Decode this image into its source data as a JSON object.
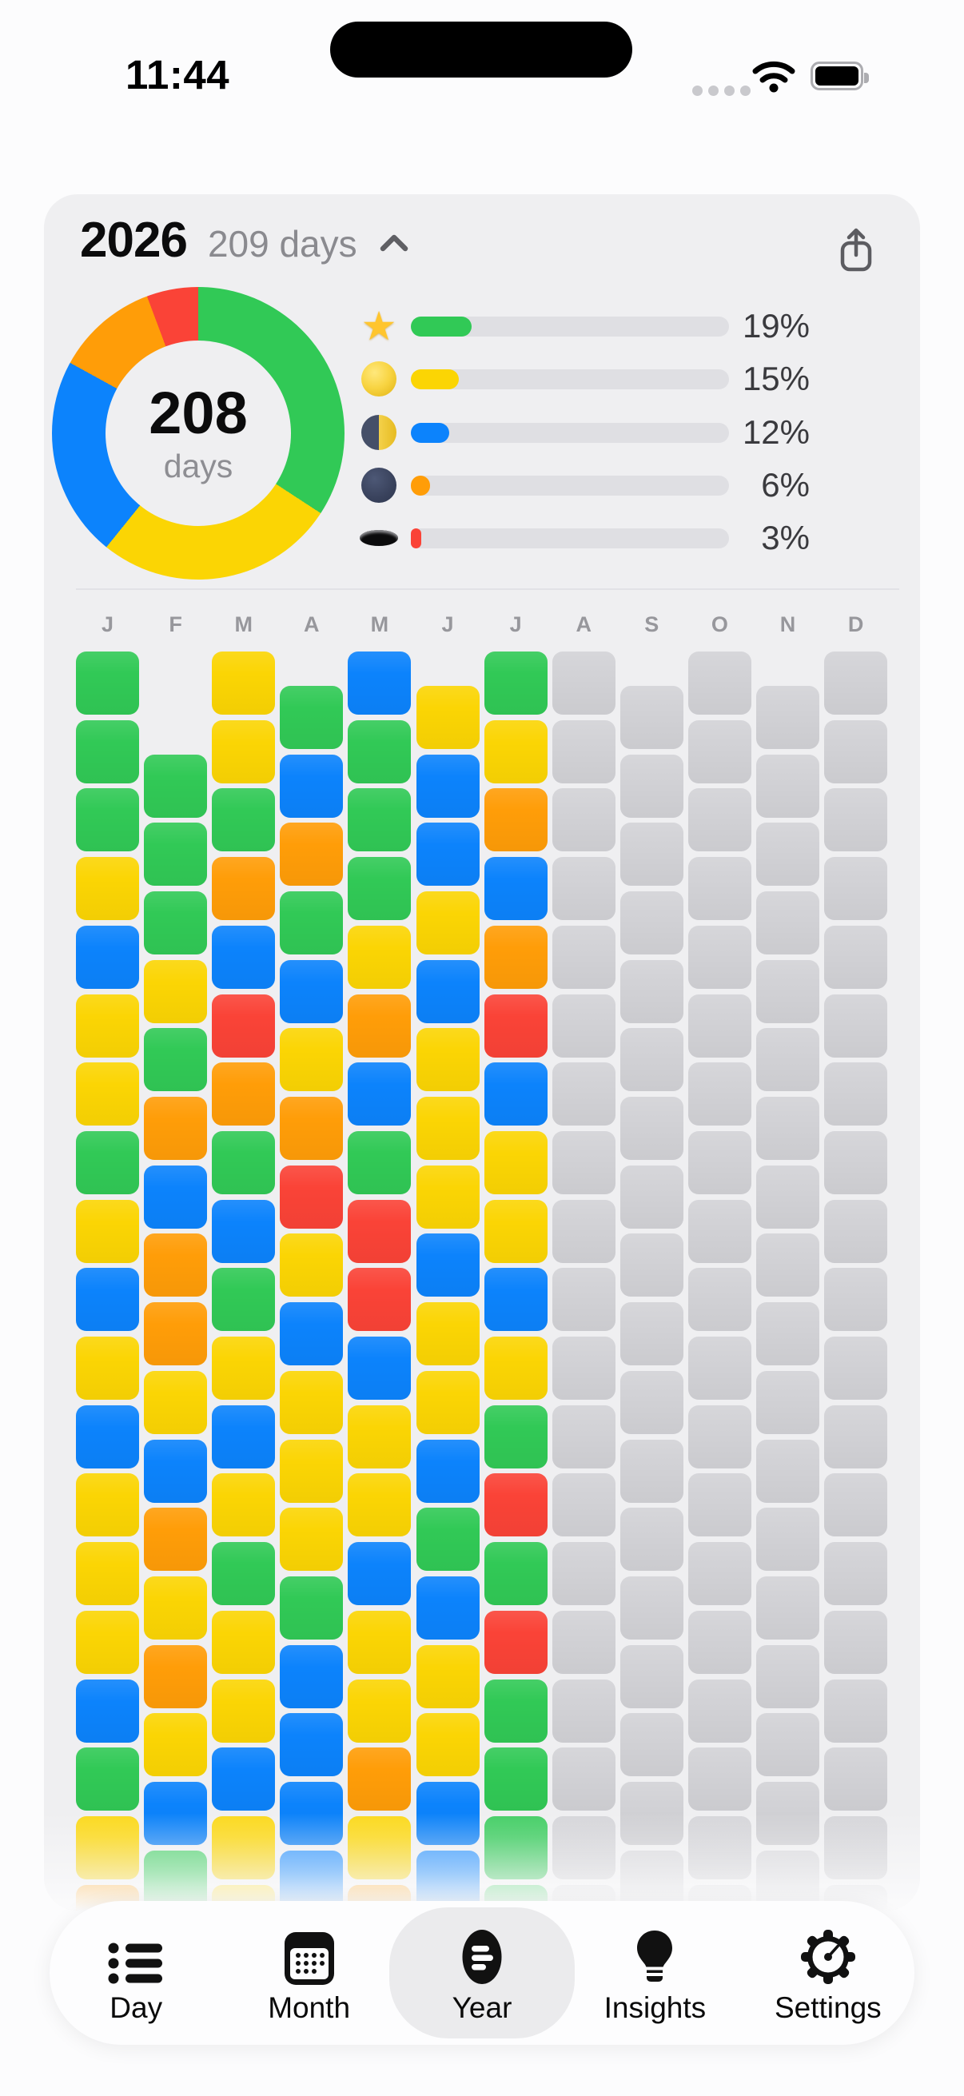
{
  "status_bar": {
    "time": "11:44"
  },
  "card": {
    "header": {
      "year": "2026",
      "days_summary": "209 days"
    },
    "donut": {
      "center_value": "208",
      "center_unit": "days",
      "segments": [
        {
          "key": "green",
          "pct": 34.2
        },
        {
          "key": "yellow",
          "pct": 26.6
        },
        {
          "key": "blue",
          "pct": 22.2
        },
        {
          "key": "orange",
          "pct": 11.3
        },
        {
          "key": "red",
          "pct": 5.7
        }
      ]
    },
    "legend": [
      {
        "icon": "star-icon",
        "key": "green",
        "value": 19,
        "label": "19%"
      },
      {
        "icon": "full-moon-icon",
        "key": "yellow",
        "value": 15,
        "label": "15%"
      },
      {
        "icon": "last-quarter-moon-icon",
        "key": "blue",
        "value": 12,
        "label": "12%"
      },
      {
        "icon": "new-moon-icon",
        "key": "orange",
        "value": 6,
        "label": "6%"
      },
      {
        "icon": "hole-icon",
        "key": "red",
        "value": 3,
        "label": "3%"
      }
    ],
    "calendar": {
      "months": [
        {
          "label": "J",
          "row_offset": 0,
          "cells": [
            "green",
            "green",
            "green",
            "yellow",
            "blue",
            "yellow",
            "yellow",
            "green",
            "yellow",
            "blue",
            "yellow",
            "blue",
            "yellow",
            "yellow",
            "yellow",
            "blue",
            "green",
            "yellow",
            "orange"
          ]
        },
        {
          "label": "F",
          "row_offset": 1.5,
          "cells": [
            "green",
            "green",
            "green",
            "yellow",
            "green",
            "orange",
            "blue",
            "orange",
            "orange",
            "yellow",
            "blue",
            "orange",
            "yellow",
            "orange",
            "yellow",
            "blue",
            "green"
          ]
        },
        {
          "label": "M",
          "row_offset": 0,
          "cells": [
            "yellow",
            "yellow",
            "green",
            "orange",
            "blue",
            "red",
            "orange",
            "green",
            "blue",
            "green",
            "yellow",
            "blue",
            "yellow",
            "green",
            "yellow",
            "yellow",
            "blue",
            "yellow",
            "yellow"
          ]
        },
        {
          "label": "A",
          "row_offset": 0.5,
          "cells": [
            "green",
            "blue",
            "orange",
            "green",
            "blue",
            "yellow",
            "orange",
            "red",
            "yellow",
            "blue",
            "yellow",
            "yellow",
            "yellow",
            "green",
            "blue",
            "blue",
            "blue",
            "blue"
          ]
        },
        {
          "label": "M",
          "row_offset": 0,
          "cells": [
            "blue",
            "green",
            "green",
            "green",
            "yellow",
            "orange",
            "blue",
            "green",
            "red",
            "red",
            "blue",
            "yellow",
            "yellow",
            "blue",
            "yellow",
            "yellow",
            "orange",
            "yellow",
            "orange"
          ]
        },
        {
          "label": "J",
          "row_offset": 0.5,
          "cells": [
            "yellow",
            "blue",
            "blue",
            "yellow",
            "blue",
            "yellow",
            "yellow",
            "yellow",
            "blue",
            "yellow",
            "yellow",
            "blue",
            "green",
            "blue",
            "yellow",
            "yellow",
            "blue",
            "blue"
          ]
        },
        {
          "label": "J",
          "row_offset": 0,
          "cells": [
            "green",
            "yellow",
            "orange",
            "blue",
            "orange",
            "red",
            "blue",
            "yellow",
            "yellow",
            "blue",
            "yellow",
            "green",
            "red",
            "green",
            "red",
            "green",
            "green",
            "green",
            "green"
          ]
        },
        {
          "label": "A",
          "row_offset": 0,
          "cells": [
            "empty",
            "empty",
            "empty",
            "empty",
            "empty",
            "empty",
            "empty",
            "empty",
            "empty",
            "empty",
            "empty",
            "empty",
            "empty",
            "empty",
            "empty",
            "empty",
            "empty",
            "empty",
            "empty"
          ]
        },
        {
          "label": "S",
          "row_offset": 0.5,
          "cells": [
            "empty",
            "empty",
            "empty",
            "empty",
            "empty",
            "empty",
            "empty",
            "empty",
            "empty",
            "empty",
            "empty",
            "empty",
            "empty",
            "empty",
            "empty",
            "empty",
            "empty",
            "empty"
          ]
        },
        {
          "label": "O",
          "row_offset": 0,
          "cells": [
            "empty",
            "empty",
            "empty",
            "empty",
            "empty",
            "empty",
            "empty",
            "empty",
            "empty",
            "empty",
            "empty",
            "empty",
            "empty",
            "empty",
            "empty",
            "empty",
            "empty",
            "empty",
            "empty"
          ]
        },
        {
          "label": "N",
          "row_offset": 0.5,
          "cells": [
            "empty",
            "empty",
            "empty",
            "empty",
            "empty",
            "empty",
            "empty",
            "empty",
            "empty",
            "empty",
            "empty",
            "empty",
            "empty",
            "empty",
            "empty",
            "empty",
            "empty",
            "empty"
          ]
        },
        {
          "label": "D",
          "row_offset": 0,
          "cells": [
            "empty",
            "empty",
            "empty",
            "empty",
            "empty",
            "empty",
            "empty",
            "empty",
            "empty",
            "empty",
            "empty",
            "empty",
            "empty",
            "empty",
            "empty",
            "empty",
            "empty",
            "empty",
            "empty"
          ]
        }
      ]
    }
  },
  "colors": {
    "green": "#31C956",
    "yellow": "#FBD504",
    "blue": "#0C83FC",
    "orange": "#FF9D08",
    "red": "#FA4337",
    "empty": "#D2D2D6",
    "card_bg": "#EFEFF1",
    "track": "#DFDFE3"
  },
  "tab_bar": {
    "tabs": [
      {
        "label": "Day",
        "icon": "list-icon",
        "active": false
      },
      {
        "label": "Month",
        "icon": "calendar-icon",
        "active": false
      },
      {
        "label": "Year",
        "icon": "year-pixels-icon",
        "active": true
      },
      {
        "label": "Insights",
        "icon": "lightbulb-icon",
        "active": false
      },
      {
        "label": "Settings",
        "icon": "gear-icon",
        "active": false
      }
    ]
  }
}
